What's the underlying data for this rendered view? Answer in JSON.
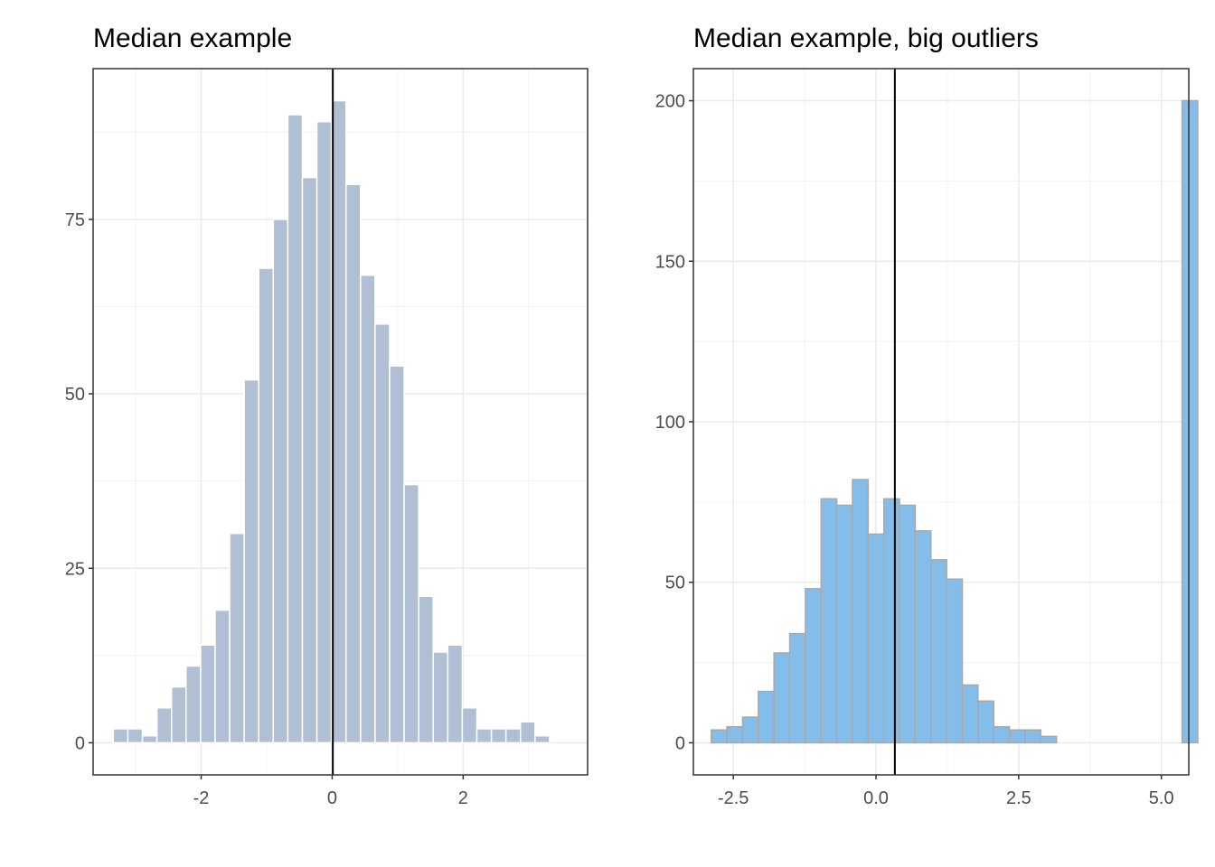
{
  "colors": {
    "left_bar_fill": "#b0bfd4",
    "left_bar_stroke": "#ffffff",
    "right_bar_fill": "#85bdea",
    "right_bar_stroke": "#a9a9a9",
    "grid": "#ebebeb",
    "axis_text": "#4d4d4d",
    "median_line": "#000000"
  },
  "chart_data": [
    {
      "type": "bar",
      "subtype": "histogram",
      "title": "Median example",
      "xlabel": "",
      "ylabel": "",
      "xlim": [
        -3.65,
        3.9
      ],
      "ylim": [
        -4.6,
        96.6
      ],
      "x_ticks": [
        -2,
        0,
        2
      ],
      "x_tick_labels": [
        "-2",
        "0",
        "2"
      ],
      "y_ticks": [
        0,
        25,
        50,
        75
      ],
      "y_tick_labels": [
        "0",
        "25",
        "50",
        "75"
      ],
      "y_minor_ticks": [
        12.5,
        37.5,
        62.5,
        87.5
      ],
      "x_minor_ticks": [
        -3,
        -1,
        1,
        3
      ],
      "grid": true,
      "bin_width": 0.222,
      "first_bin_center": -3.23,
      "counts": [
        2,
        2,
        1,
        5,
        8,
        11,
        14,
        19,
        30,
        52,
        68,
        75,
        90,
        81,
        89,
        92,
        80,
        67,
        60,
        54,
        37,
        21,
        13,
        14,
        5,
        2,
        2,
        2,
        3,
        1
      ],
      "median": 0.01
    },
    {
      "type": "bar",
      "subtype": "histogram",
      "title": "Median example, big outliers",
      "xlabel": "",
      "ylabel": "",
      "xlim": [
        -3.2,
        5.48
      ],
      "ylim": [
        -10,
        210
      ],
      "x_ticks": [
        -2.5,
        0.0,
        2.5,
        5.0
      ],
      "x_tick_labels": [
        "-2.5",
        "0.0",
        "2.5",
        "5.0"
      ],
      "y_ticks": [
        0,
        50,
        100,
        150,
        200
      ],
      "y_tick_labels": [
        "0",
        "50",
        "100",
        "150",
        "200"
      ],
      "y_minor_ticks": [
        25,
        75,
        125,
        175
      ],
      "x_minor_ticks": [
        -1.25,
        1.25,
        3.75
      ],
      "grid": true,
      "bin_width": 0.275,
      "first_bin_center": -2.75,
      "counts": [
        4,
        5,
        8,
        16,
        28,
        34,
        48,
        76,
        74,
        82,
        65,
        76,
        74,
        66,
        57,
        51,
        18,
        13,
        5,
        4,
        4,
        2,
        0,
        0,
        0,
        0,
        0,
        0,
        0,
        0,
        200
      ],
      "median": 0.33
    }
  ]
}
